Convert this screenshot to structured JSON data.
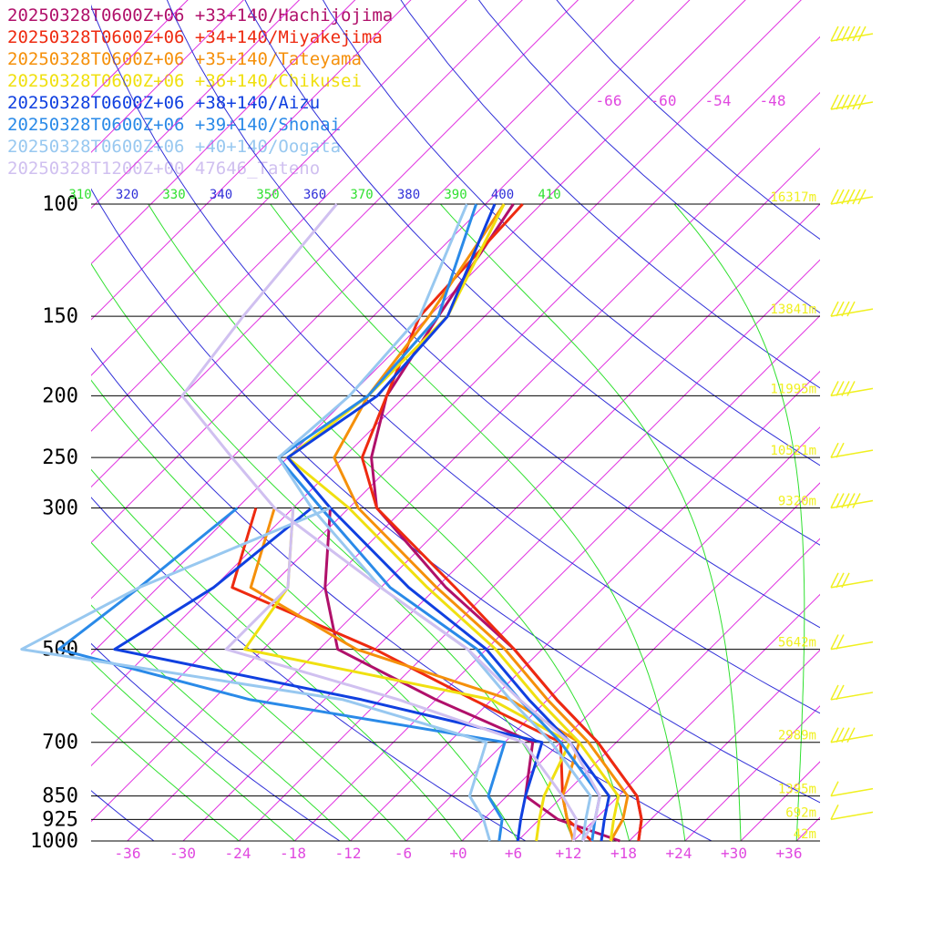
{
  "legend": [
    {
      "text": "20250328T0600Z+06 +33+140/Hachijojima",
      "color": "#b0106a"
    },
    {
      "text": "20250328T0600Z+06 +34+140/Miyakejima",
      "color": "#ee2a10"
    },
    {
      "text": "20250328T0600Z+06 +35+140/Tateyama",
      "color": "#f5900a"
    },
    {
      "text": "20250328T0600Z+06 +36+140/Chikusei",
      "color": "#f0e010"
    },
    {
      "text": "20250328T0600Z+06 +38+140/Aizu",
      "color": "#1040e0"
    },
    {
      "text": "20250328T0600Z+06 +39+140/Shonai",
      "color": "#2a8ae8"
    },
    {
      "text": "20250328T0600Z+06 +40+140/Oogata",
      "color": "#98c8f0"
    },
    {
      "text": "20250328T1200Z+00 47646_Tateno",
      "color": "#d0c0f0"
    }
  ],
  "chart_data": {
    "type": "line",
    "pressure_levels": [
      {
        "label": "100",
        "p": 100,
        "height": "16317m"
      },
      {
        "label": "150",
        "p": 150,
        "height": "13841m"
      },
      {
        "label": "200",
        "p": 200,
        "height": "11995m"
      },
      {
        "label": "250",
        "p": 250,
        "height": "10521m"
      },
      {
        "label": "300",
        "p": 300,
        "height": "9320m"
      },
      {
        "label": "500",
        "p": 500,
        "height": "5642m"
      },
      {
        "label": "700",
        "p": 700,
        "height": "2989m"
      },
      {
        "label": "850",
        "p": 850,
        "height": "1395m"
      },
      {
        "label": "925",
        "p": 925,
        "height": "692m"
      },
      {
        "label": "1000",
        "p": 1000,
        "height": "42m"
      }
    ],
    "temp_ticks": [
      "-36",
      "-30",
      "-24",
      "-18",
      "-12",
      "-6",
      "+0",
      "+6",
      "+12",
      "+18",
      "+24",
      "+30",
      "+36"
    ],
    "upper_temp_labels": [
      "-66",
      "-60",
      "-54",
      "-48"
    ],
    "theta_labels": [
      "310",
      "320",
      "330",
      "340",
      "350",
      "360",
      "370",
      "380",
      "390",
      "400",
      "410"
    ],
    "colors": {
      "isotherm": "#e030e0",
      "dry_adiabat": "#3030d8",
      "moist_adiabat": "#30e030",
      "isobar": "#000000",
      "height": "#f0f020",
      "wind": "#f0f020"
    },
    "series": [
      {
        "name": "20250328T0600Z+06 +33+140/Hachijojima",
        "color": "#b0106a",
        "temperature": [
          [
            100,
            -63
          ],
          [
            150,
            -59
          ],
          [
            200,
            -56
          ],
          [
            250,
            -51
          ],
          [
            300,
            -45
          ],
          [
            400,
            -29
          ],
          [
            500,
            -15
          ],
          [
            600,
            -5
          ],
          [
            700,
            4
          ],
          [
            850,
            14
          ],
          [
            925,
            17
          ],
          [
            1000,
            19
          ]
        ],
        "dewpoint": [
          [
            300,
            -50
          ],
          [
            400,
            -42
          ],
          [
            500,
            -34
          ],
          [
            600,
            -18
          ],
          [
            700,
            -3
          ],
          [
            850,
            2
          ],
          [
            925,
            8
          ],
          [
            1000,
            17
          ]
        ]
      },
      {
        "name": "20250328T0600Z+06 +34+140/Miyakejima",
        "color": "#ee2a10",
        "temperature": [
          [
            100,
            -62
          ],
          [
            150,
            -61
          ],
          [
            200,
            -56
          ],
          [
            250,
            -52
          ],
          [
            300,
            -45
          ],
          [
            400,
            -28
          ],
          [
            500,
            -15
          ],
          [
            600,
            -5
          ],
          [
            700,
            4
          ],
          [
            850,
            14
          ],
          [
            925,
            17
          ],
          [
            1000,
            19
          ]
        ],
        "dewpoint": [
          [
            300,
            -58
          ],
          [
            400,
            -52
          ],
          [
            500,
            -30
          ],
          [
            600,
            -14
          ],
          [
            700,
            0
          ],
          [
            850,
            6
          ],
          [
            925,
            9
          ],
          [
            1000,
            14
          ]
        ]
      },
      {
        "name": "20250328T0600Z+06 +35+140/Tateyama",
        "color": "#f5900a",
        "temperature": [
          [
            100,
            -64
          ],
          [
            150,
            -60
          ],
          [
            200,
            -58
          ],
          [
            250,
            -55
          ],
          [
            300,
            -47
          ],
          [
            400,
            -30
          ],
          [
            500,
            -16
          ],
          [
            600,
            -6
          ],
          [
            700,
            3
          ],
          [
            850,
            13
          ],
          [
            925,
            15
          ],
          [
            1000,
            16
          ]
        ],
        "dewpoint": [
          [
            300,
            -56
          ],
          [
            400,
            -50
          ],
          [
            500,
            -32
          ],
          [
            600,
            -10
          ],
          [
            700,
            2
          ],
          [
            850,
            6
          ],
          [
            925,
            9
          ],
          [
            1000,
            12
          ]
        ]
      },
      {
        "name": "20250328T0600Z+06 +36+140/Chikusei",
        "color": "#f0e010",
        "temperature": [
          [
            100,
            -64
          ],
          [
            150,
            -58
          ],
          [
            200,
            -58
          ],
          [
            250,
            -60
          ],
          [
            300,
            -48
          ],
          [
            400,
            -31
          ],
          [
            500,
            -17
          ],
          [
            600,
            -7
          ],
          [
            700,
            2
          ],
          [
            850,
            12
          ],
          [
            925,
            14
          ],
          [
            1000,
            16
          ]
        ],
        "dewpoint": [
          [
            300,
            -54
          ],
          [
            400,
            -46
          ],
          [
            500,
            -44
          ],
          [
            600,
            -12
          ],
          [
            700,
            1
          ],
          [
            850,
            4
          ],
          [
            925,
            6
          ],
          [
            1000,
            8
          ]
        ]
      },
      {
        "name": "20250328T0600Z+06 +38+140/Aizu",
        "color": "#1040e0",
        "temperature": [
          [
            100,
            -65
          ],
          [
            150,
            -58
          ],
          [
            200,
            -57
          ],
          [
            250,
            -60
          ],
          [
            300,
            -50
          ],
          [
            400,
            -33
          ],
          [
            500,
            -18
          ],
          [
            600,
            -8
          ],
          [
            700,
            1
          ],
          [
            850,
            11
          ],
          [
            925,
            13
          ],
          [
            1000,
            15
          ]
        ],
        "dewpoint": [
          [
            300,
            -52
          ],
          [
            400,
            -54
          ],
          [
            500,
            -58
          ],
          [
            600,
            -26
          ],
          [
            700,
            -2
          ],
          [
            850,
            2
          ],
          [
            925,
            4
          ],
          [
            1000,
            6
          ]
        ]
      },
      {
        "name": "20250328T0600Z+06 +39+140/Shonai",
        "color": "#2a8ae8",
        "temperature": [
          [
            100,
            -67
          ],
          [
            150,
            -59
          ],
          [
            200,
            -58
          ],
          [
            250,
            -61
          ],
          [
            300,
            -51
          ],
          [
            400,
            -35
          ],
          [
            500,
            -19
          ],
          [
            600,
            -9
          ],
          [
            700,
            0
          ],
          [
            850,
            10
          ],
          [
            925,
            12
          ],
          [
            1000,
            14
          ]
        ],
        "dewpoint": [
          [
            300,
            -60
          ],
          [
            400,
            -62
          ],
          [
            500,
            -64
          ],
          [
            600,
            -38
          ],
          [
            700,
            -6
          ],
          [
            850,
            -2
          ],
          [
            925,
            2
          ],
          [
            1000,
            4
          ]
        ]
      },
      {
        "name": "20250328T0600Z+06 +40+140/Oogata",
        "color": "#98c8f0",
        "temperature": [
          [
            100,
            -68
          ],
          [
            150,
            -61
          ],
          [
            200,
            -60
          ],
          [
            250,
            -61
          ],
          [
            300,
            -52
          ],
          [
            400,
            -36
          ],
          [
            500,
            -20
          ],
          [
            600,
            -10
          ],
          [
            700,
            -1
          ],
          [
            850,
            9
          ],
          [
            925,
            11
          ],
          [
            1000,
            13
          ]
        ],
        "dewpoint": [
          [
            300,
            -50
          ],
          [
            400,
            -62
          ],
          [
            500,
            -68
          ],
          [
            600,
            -28
          ],
          [
            700,
            -8
          ],
          [
            850,
            -4
          ],
          [
            925,
            0
          ],
          [
            1000,
            3
          ]
        ]
      },
      {
        "name": "20250328T1200Z+00 47646_Tateno",
        "color": "#d0c0f0",
        "temperature": [
          [
            100,
            -82
          ],
          [
            150,
            -80
          ],
          [
            200,
            -78
          ],
          [
            250,
            -66
          ],
          [
            300,
            -56
          ],
          [
            400,
            -36
          ],
          [
            500,
            -20
          ],
          [
            600,
            -9
          ],
          [
            700,
            1
          ],
          [
            850,
            10
          ],
          [
            925,
            12
          ],
          [
            1000,
            13
          ]
        ],
        "dewpoint": [
          [
            300,
            -54
          ],
          [
            400,
            -46
          ],
          [
            500,
            -46
          ],
          [
            600,
            -22
          ],
          [
            700,
            -4
          ],
          [
            850,
            6
          ],
          [
            925,
            10
          ],
          [
            1000,
            12
          ]
        ]
      }
    ],
    "wind_barbs": [
      {
        "p": 70,
        "speed": 55
      },
      {
        "p": 90,
        "speed": 55
      },
      {
        "p": 100,
        "speed": 55
      },
      {
        "p": 150,
        "speed": 35
      },
      {
        "p": 200,
        "speed": 40
      },
      {
        "p": 250,
        "speed": 20
      },
      {
        "p": 300,
        "speed": 45
      },
      {
        "p": 400,
        "speed": 25
      },
      {
        "p": 500,
        "speed": 15
      },
      {
        "p": 600,
        "speed": 15
      },
      {
        "p": 700,
        "speed": 35
      },
      {
        "p": 850,
        "speed": 10
      },
      {
        "p": 925,
        "speed": 5
      }
    ]
  }
}
